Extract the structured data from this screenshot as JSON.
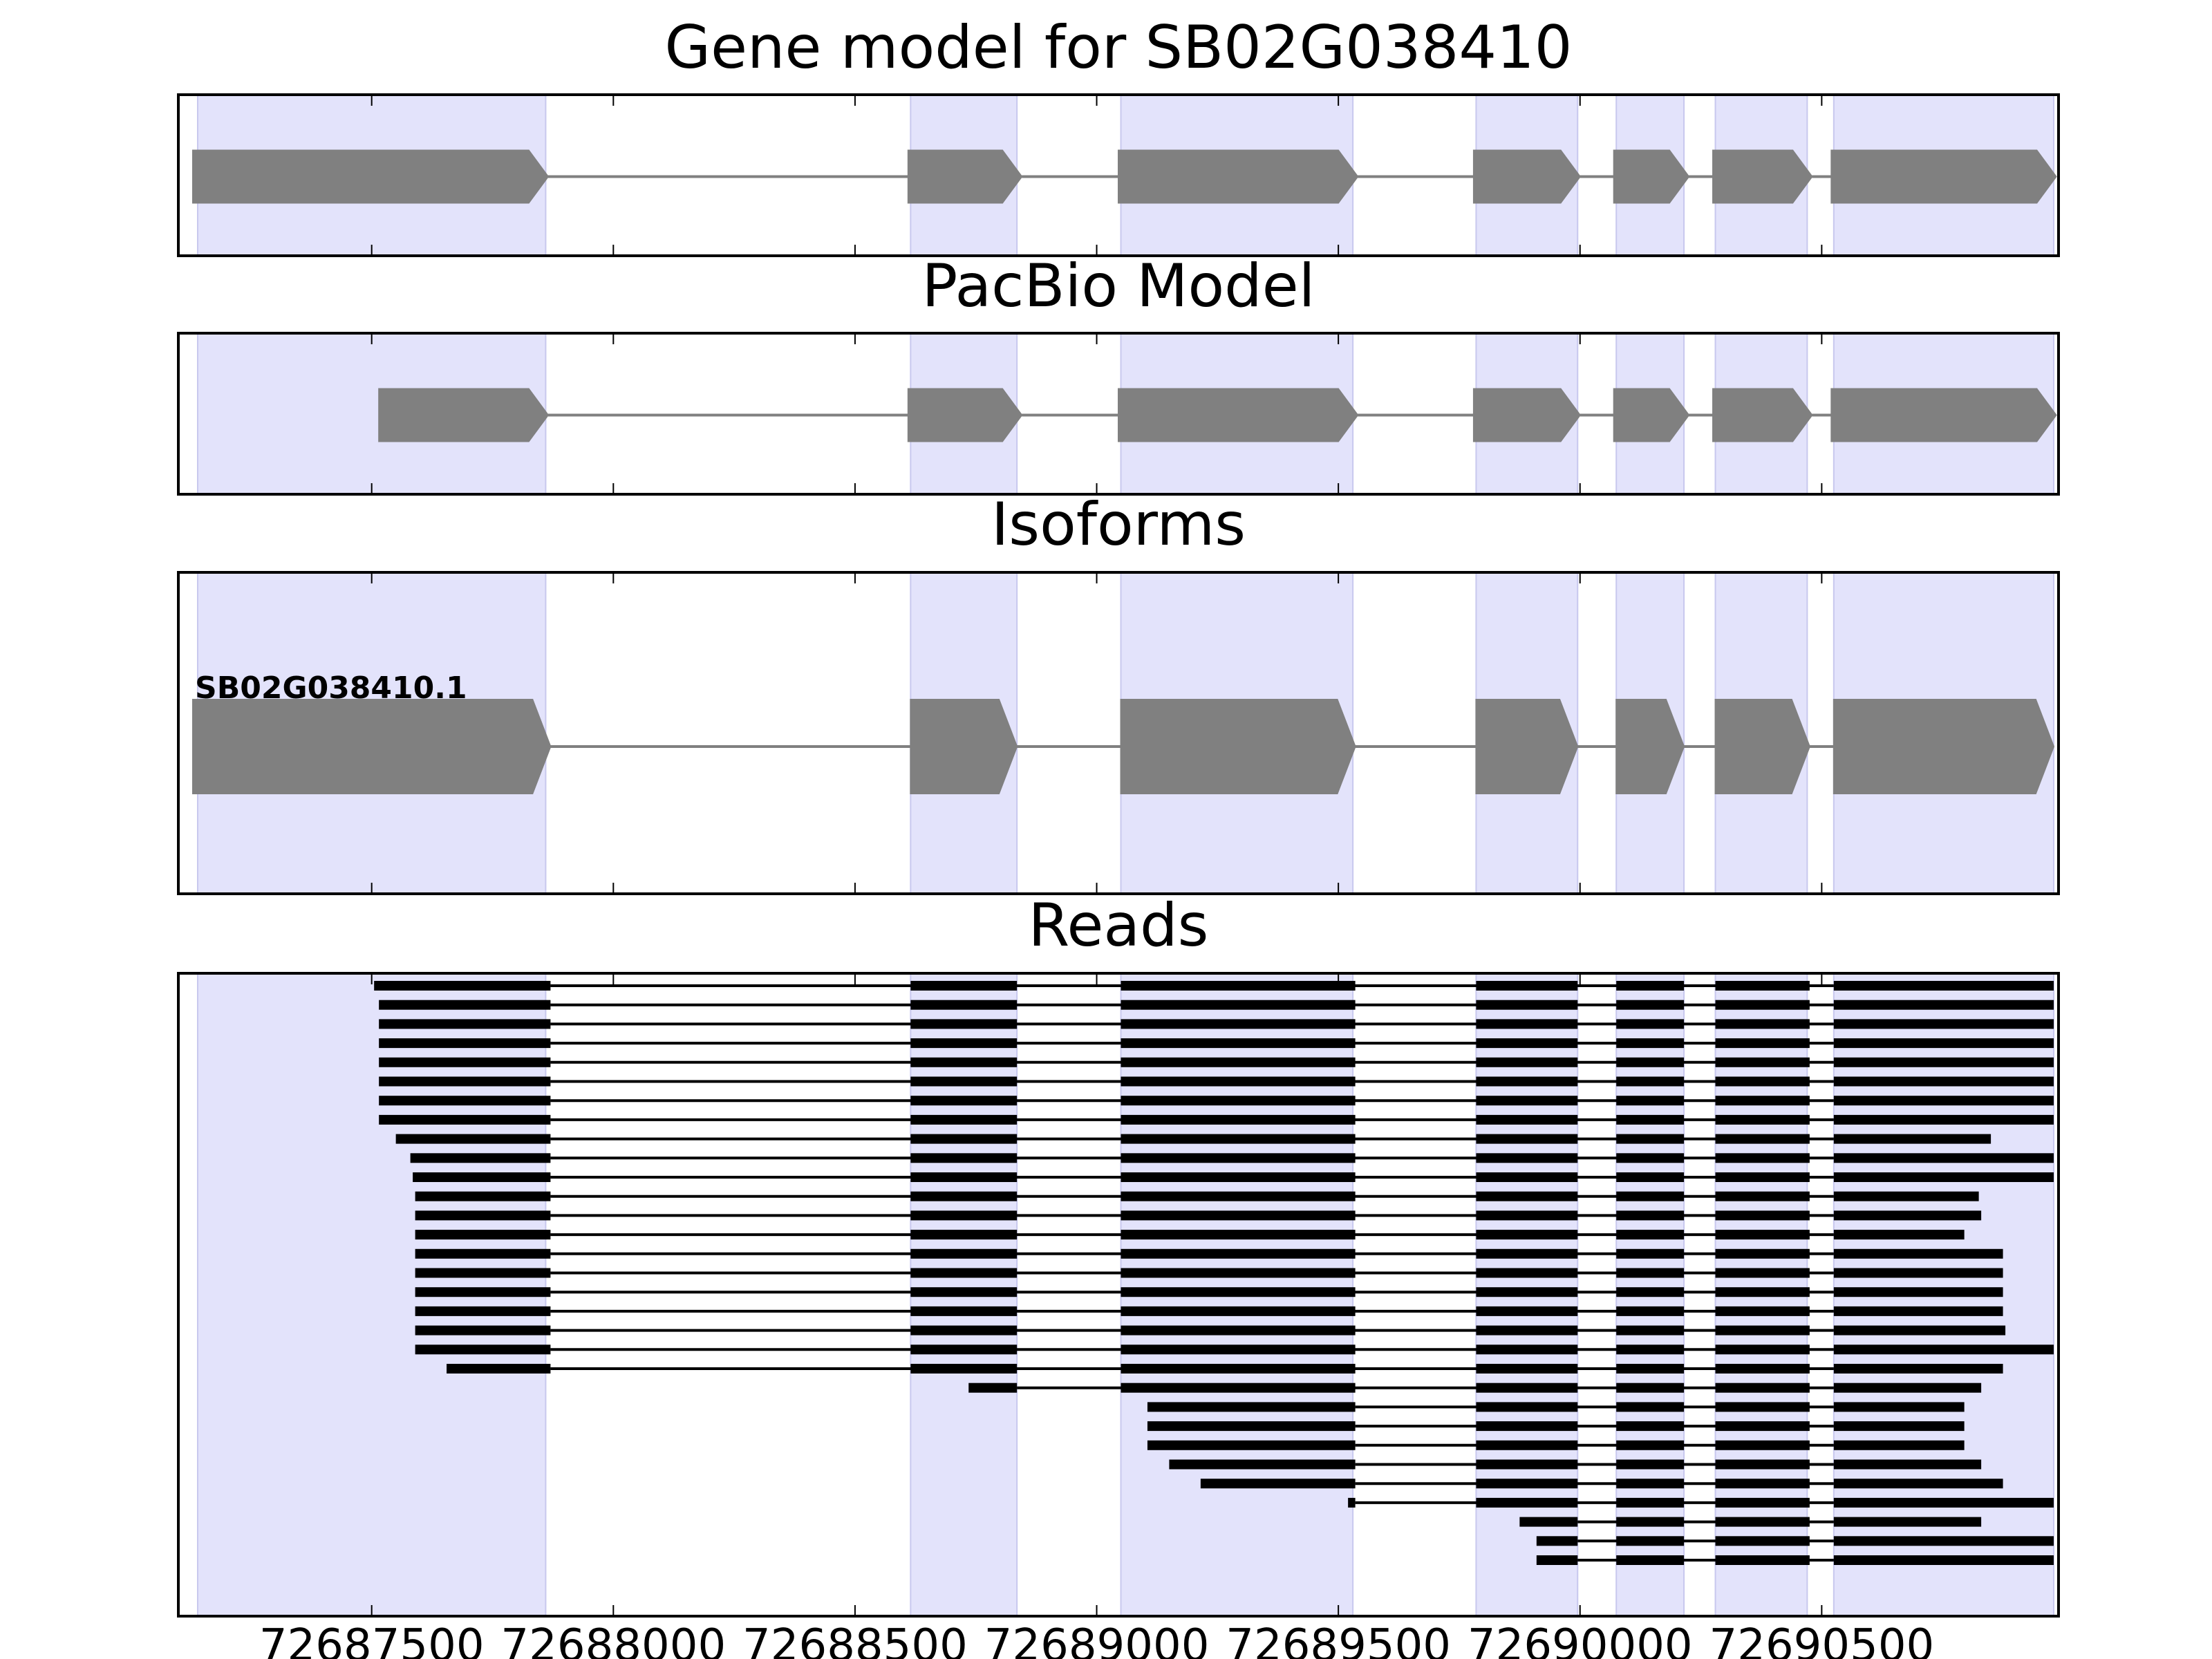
{
  "chart_data": {
    "type": "gene-track",
    "x_axis": {
      "ticks": [
        72687500,
        72688000,
        72688500,
        72689000,
        72689500,
        72690000,
        72690500
      ],
      "tick_labels": [
        "72687500",
        "72688000",
        "72688500",
        "72689000",
        "72689500",
        "72690000",
        "72690500"
      ],
      "xlim": [
        72687100,
        72690990
      ]
    },
    "highlight_color": "#e3e3fb",
    "exon_color": "#808080",
    "read_color": "#000000",
    "highlight_regions": [
      [
        72687140,
        72687860
      ],
      [
        72688615,
        72688835
      ],
      [
        72689050,
        72689530
      ],
      [
        72689785,
        72689995
      ],
      [
        72690075,
        72690215
      ],
      [
        72690280,
        72690470
      ],
      [
        72690525,
        72690980
      ]
    ],
    "panels": [
      {
        "title": "Gene model for SB02G038410",
        "kind": "model",
        "exons": [
          [
            72687130,
            72687865
          ],
          [
            72688610,
            72688845
          ],
          [
            72689045,
            72689540
          ],
          [
            72689780,
            72690000
          ],
          [
            72690070,
            72690225
          ],
          [
            72690275,
            72690480
          ],
          [
            72690520,
            72690985
          ]
        ]
      },
      {
        "title": "PacBio Model",
        "kind": "model",
        "exons": [
          [
            72687515,
            72687865
          ],
          [
            72688610,
            72688845
          ],
          [
            72689045,
            72689540
          ],
          [
            72689780,
            72690000
          ],
          [
            72690070,
            72690225
          ],
          [
            72690275,
            72690480
          ],
          [
            72690520,
            72690985
          ]
        ]
      },
      {
        "title": "Isoforms",
        "kind": "model",
        "isoform_label": "SB02G038410.1",
        "exons": [
          [
            72687130,
            72687870
          ],
          [
            72688615,
            72688835
          ],
          [
            72689050,
            72689535
          ],
          [
            72689785,
            72689995
          ],
          [
            72690075,
            72690215
          ],
          [
            72690280,
            72690475
          ],
          [
            72690525,
            72690980
          ]
        ]
      },
      {
        "title": "Reads",
        "kind": "reads",
        "reads": [
          {
            "start": 72687505,
            "end": 72690985
          },
          {
            "start": 72687515,
            "end": 72690985
          },
          {
            "start": 72687515,
            "end": 72690985
          },
          {
            "start": 72687515,
            "end": 72690985
          },
          {
            "start": 72687515,
            "end": 72690985
          },
          {
            "start": 72687515,
            "end": 72690985
          },
          {
            "start": 72687515,
            "end": 72690985
          },
          {
            "start": 72687515,
            "end": 72690985
          },
          {
            "start": 72687550,
            "end": 72690850
          },
          {
            "start": 72687580,
            "end": 72690985
          },
          {
            "start": 72687585,
            "end": 72690985
          },
          {
            "start": 72687590,
            "end": 72690825
          },
          {
            "start": 72687590,
            "end": 72690830
          },
          {
            "start": 72687590,
            "end": 72690795
          },
          {
            "start": 72687590,
            "end": 72690875
          },
          {
            "start": 72687590,
            "end": 72690875
          },
          {
            "start": 72687590,
            "end": 72690875
          },
          {
            "start": 72687590,
            "end": 72690875
          },
          {
            "start": 72687590,
            "end": 72690880
          },
          {
            "start": 72687590,
            "end": 72690985
          },
          {
            "start": 72687655,
            "end": 72690875
          },
          {
            "start": 72688735,
            "end": 72690830
          },
          {
            "start": 72689105,
            "end": 72690795
          },
          {
            "start": 72689105,
            "end": 72690795
          },
          {
            "start": 72689105,
            "end": 72690795
          },
          {
            "start": 72689150,
            "end": 72690830
          },
          {
            "start": 72689215,
            "end": 72690875
          },
          {
            "start": 72689520,
            "end": 72690985
          },
          {
            "start": 72689875,
            "end": 72690830
          },
          {
            "start": 72689910,
            "end": 72690985
          },
          {
            "start": 72689910,
            "end": 72690985
          }
        ]
      }
    ]
  }
}
